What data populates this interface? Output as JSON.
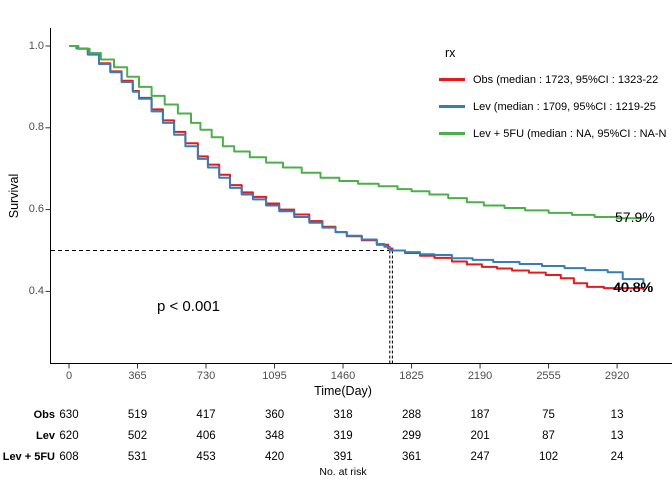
{
  "chart_data": {
    "type": "line",
    "subtype": "kaplan-meier-step-survival",
    "title": "",
    "xlabel": "Time(Day)",
    "ylabel": "Survival",
    "xlim": [
      0,
      3080
    ],
    "ylim": [
      0.3,
      1.02
    ],
    "grid": false,
    "x_ticks": [
      0,
      365,
      730,
      1095,
      1460,
      1825,
      2190,
      2555,
      2920
    ],
    "y_ticks": [
      1.0,
      0.8,
      0.6,
      0.4
    ],
    "y_tick_labels": [
      "1.0",
      "0.8",
      "0.6",
      "0.4"
    ],
    "legend": {
      "title": "rx",
      "position": "top-right",
      "items": [
        {
          "name": "Obs",
          "color": "#E41A1C",
          "label": "Obs (median : 1723, 95%CI : 1323-22"
        },
        {
          "name": "Lev",
          "color": "#377EB8",
          "label": "Lev (median : 1709, 95%CI : 1219-25"
        },
        {
          "name": "Lev + 5FU",
          "color": "#4DAF4A",
          "label": "Lev + 5FU (median : NA, 95%CI : NA-N"
        }
      ]
    },
    "series": [
      {
        "name": "Obs",
        "color": "#E41A1C",
        "points": [
          [
            0,
            1.0
          ],
          [
            40,
            0.994
          ],
          [
            100,
            0.98
          ],
          [
            160,
            0.958
          ],
          [
            220,
            0.938
          ],
          [
            280,
            0.915
          ],
          [
            340,
            0.89
          ],
          [
            373,
            0.873
          ],
          [
            440,
            0.845
          ],
          [
            500,
            0.818
          ],
          [
            560,
            0.79
          ],
          [
            620,
            0.762
          ],
          [
            687,
            0.73
          ],
          [
            740,
            0.71
          ],
          [
            800,
            0.685
          ],
          [
            858,
            0.66
          ],
          [
            920,
            0.642
          ],
          [
            980,
            0.631
          ],
          [
            1050,
            0.615
          ],
          [
            1120,
            0.6
          ],
          [
            1200,
            0.588
          ],
          [
            1280,
            0.572
          ],
          [
            1350,
            0.558
          ],
          [
            1420,
            0.545
          ],
          [
            1480,
            0.535
          ],
          [
            1560,
            0.525
          ],
          [
            1640,
            0.514
          ],
          [
            1700,
            0.505
          ],
          [
            1723,
            0.5
          ],
          [
            1790,
            0.494
          ],
          [
            1870,
            0.487
          ],
          [
            1947,
            0.482
          ],
          [
            2040,
            0.473
          ],
          [
            2120,
            0.466
          ],
          [
            2200,
            0.46
          ],
          [
            2280,
            0.456
          ],
          [
            2360,
            0.451
          ],
          [
            2450,
            0.446
          ],
          [
            2540,
            0.44
          ],
          [
            2620,
            0.432
          ],
          [
            2690,
            0.42
          ],
          [
            2760,
            0.411
          ],
          [
            2850,
            0.408
          ],
          [
            2920,
            0.408
          ],
          [
            3060,
            0.403
          ]
        ]
      },
      {
        "name": "Lev",
        "color": "#377EB8",
        "points": [
          [
            0,
            1.0
          ],
          [
            40,
            0.994
          ],
          [
            100,
            0.979
          ],
          [
            160,
            0.956
          ],
          [
            220,
            0.936
          ],
          [
            280,
            0.912
          ],
          [
            340,
            0.888
          ],
          [
            373,
            0.871
          ],
          [
            440,
            0.84
          ],
          [
            500,
            0.812
          ],
          [
            560,
            0.783
          ],
          [
            620,
            0.755
          ],
          [
            687,
            0.724
          ],
          [
            740,
            0.703
          ],
          [
            800,
            0.678
          ],
          [
            858,
            0.653
          ],
          [
            920,
            0.637
          ],
          [
            980,
            0.625
          ],
          [
            1050,
            0.61
          ],
          [
            1120,
            0.596
          ],
          [
            1200,
            0.582
          ],
          [
            1280,
            0.568
          ],
          [
            1350,
            0.556
          ],
          [
            1420,
            0.545
          ],
          [
            1480,
            0.536
          ],
          [
            1560,
            0.527
          ],
          [
            1640,
            0.516
          ],
          [
            1680,
            0.509
          ],
          [
            1709,
            0.5
          ],
          [
            1790,
            0.496
          ],
          [
            1870,
            0.491
          ],
          [
            1947,
            0.489
          ],
          [
            2040,
            0.481
          ],
          [
            2150,
            0.477
          ],
          [
            2260,
            0.472
          ],
          [
            2400,
            0.467
          ],
          [
            2520,
            0.462
          ],
          [
            2640,
            0.457
          ],
          [
            2750,
            0.452
          ],
          [
            2870,
            0.447
          ],
          [
            2950,
            0.43
          ],
          [
            3060,
            0.417
          ]
        ]
      },
      {
        "name": "Lev + 5FU",
        "color": "#4DAF4A",
        "points": [
          [
            0,
            1.0
          ],
          [
            50,
            0.993
          ],
          [
            110,
            0.983
          ],
          [
            170,
            0.967
          ],
          [
            240,
            0.948
          ],
          [
            310,
            0.925
          ],
          [
            373,
            0.9
          ],
          [
            440,
            0.878
          ],
          [
            510,
            0.857
          ],
          [
            580,
            0.835
          ],
          [
            650,
            0.812
          ],
          [
            700,
            0.795
          ],
          [
            760,
            0.777
          ],
          [
            820,
            0.755
          ],
          [
            880,
            0.742
          ],
          [
            963,
            0.728
          ],
          [
            1050,
            0.715
          ],
          [
            1140,
            0.703
          ],
          [
            1240,
            0.69
          ],
          [
            1340,
            0.678
          ],
          [
            1440,
            0.67
          ],
          [
            1540,
            0.663
          ],
          [
            1650,
            0.657
          ],
          [
            1750,
            0.65
          ],
          [
            1825,
            0.645
          ],
          [
            1920,
            0.637
          ],
          [
            2020,
            0.628
          ],
          [
            2120,
            0.618
          ],
          [
            2210,
            0.61
          ],
          [
            2320,
            0.604
          ],
          [
            2430,
            0.598
          ],
          [
            2555,
            0.592
          ],
          [
            2680,
            0.587
          ],
          [
            2800,
            0.582
          ],
          [
            2920,
            0.579
          ],
          [
            3060,
            0.578
          ]
        ]
      }
    ],
    "reference_lines": {
      "horizontal_y": 0.5,
      "vertical_x": [
        1709,
        1723
      ],
      "style": "dashed-black"
    },
    "annotations": {
      "p_value": "p < 0.001",
      "end_labels": [
        {
          "text": "57.9%",
          "x": 2920,
          "y": 0.579,
          "series": "Lev + 5FU"
        },
        {
          "text": "40.8%",
          "x": 2920,
          "y": 0.408,
          "series": "Obs"
        }
      ]
    },
    "risk_table": {
      "caption": "No. at risk",
      "rows": [
        {
          "label": "Obs",
          "values": [
            630,
            519,
            417,
            360,
            318,
            288,
            187,
            75,
            13
          ]
        },
        {
          "label": "Lev",
          "values": [
            620,
            502,
            406,
            348,
            319,
            299,
            201,
            87,
            13
          ]
        },
        {
          "label": "Lev + 5FU",
          "values": [
            608,
            531,
            453,
            420,
            391,
            361,
            247,
            102,
            24
          ]
        }
      ]
    }
  }
}
